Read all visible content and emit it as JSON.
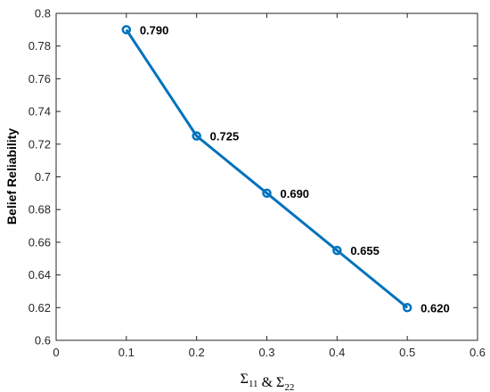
{
  "chart_data": {
    "type": "line",
    "title": "",
    "xlabel": {
      "parts": [
        {
          "text": "Σ",
          "sub": "11"
        },
        {
          "text": " & "
        },
        {
          "text": "Σ",
          "sub": "22"
        }
      ]
    },
    "ylabel": "Belief Reliability",
    "xlim": [
      0,
      0.6
    ],
    "ylim": [
      0.6,
      0.8
    ],
    "x_ticks": [
      "0",
      "0.1",
      "0.2",
      "0.3",
      "0.4",
      "0.5",
      "0.6"
    ],
    "y_ticks": [
      "0.6",
      "0.62",
      "0.64",
      "0.66",
      "0.68",
      "0.7",
      "0.72",
      "0.74",
      "0.76",
      "0.78",
      "0.8"
    ],
    "grid": false,
    "series": [
      {
        "color": "#0072BD",
        "marker": "circle",
        "points": [
          {
            "x": 0.1,
            "y": 0.79,
            "label": "0.790"
          },
          {
            "x": 0.2,
            "y": 0.725,
            "label": "0.725"
          },
          {
            "x": 0.3,
            "y": 0.69,
            "label": "0.690"
          },
          {
            "x": 0.4,
            "y": 0.655,
            "label": "0.655"
          },
          {
            "x": 0.5,
            "y": 0.62,
            "label": "0.620"
          }
        ]
      }
    ]
  }
}
